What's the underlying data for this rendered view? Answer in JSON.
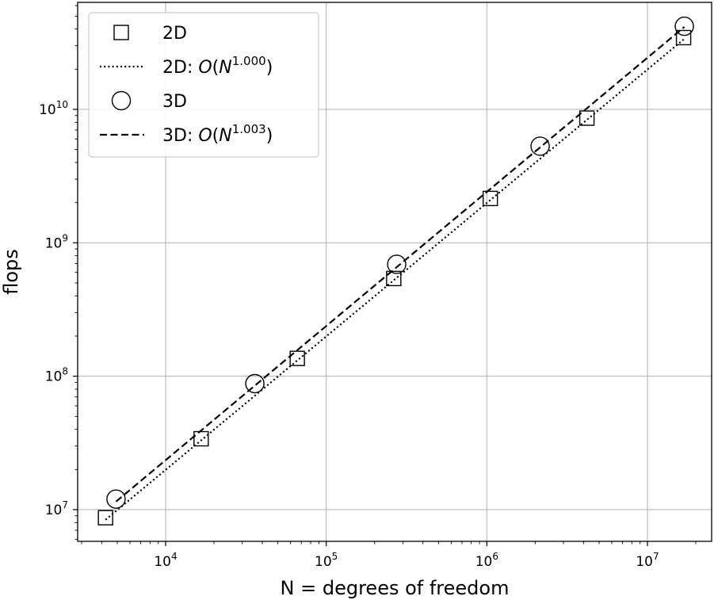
{
  "chart_data": {
    "type": "scatter",
    "xscale": "log",
    "yscale": "log",
    "xlim": [
      3000,
      25000000
    ],
    "ylim": [
      5000000,
      60000000000
    ],
    "xlabel": "N = degrees of freedom",
    "ylabel": "flops",
    "grid": true,
    "legend_position": "top-left",
    "x_ticks": [
      {
        "base": "10",
        "exp": "4",
        "value": 10000
      },
      {
        "base": "10",
        "exp": "5",
        "value": 100000
      },
      {
        "base": "10",
        "exp": "6",
        "value": 1000000
      },
      {
        "base": "10",
        "exp": "7",
        "value": 10000000
      }
    ],
    "y_ticks": [
      {
        "base": "10",
        "exp": "7",
        "value": 10000000
      },
      {
        "base": "10",
        "exp": "8",
        "value": 100000000
      },
      {
        "base": "10",
        "exp": "9",
        "value": 1000000000
      },
      {
        "base": "10",
        "exp": "10",
        "value": 10000000000
      }
    ],
    "series": [
      {
        "name": "2D",
        "marker": "square",
        "x": [
          4225,
          16641,
          66049,
          263169,
          1050625,
          4198401,
          16785409
        ],
        "y": [
          8700000,
          34000000,
          136000000,
          540000000,
          2150000000,
          8600000000,
          34500000000
        ]
      },
      {
        "name": "2D: O(N^1.000)",
        "line": "dotted",
        "x": [
          4225,
          16785409
        ],
        "y": [
          8400000,
          33400000000
        ]
      },
      {
        "name": "3D",
        "marker": "circle",
        "x": [
          4913,
          35937,
          274625,
          2146689,
          16974593
        ],
        "y": [
          12000000,
          88000000,
          690000000,
          5300000000,
          42000000000
        ]
      },
      {
        "name": "3D: O(N^1.003)",
        "line": "dashed",
        "x": [
          4913,
          16974593
        ],
        "y": [
          11500000,
          41500000000
        ]
      }
    ],
    "legend": [
      {
        "prefix": "2D",
        "sup": ""
      },
      {
        "prefix": "2D: O(N",
        "sup": "1.000"
      },
      {
        "prefix": "3D",
        "sup": ""
      },
      {
        "prefix": "3D: O(N",
        "sup": "1.003"
      }
    ]
  }
}
